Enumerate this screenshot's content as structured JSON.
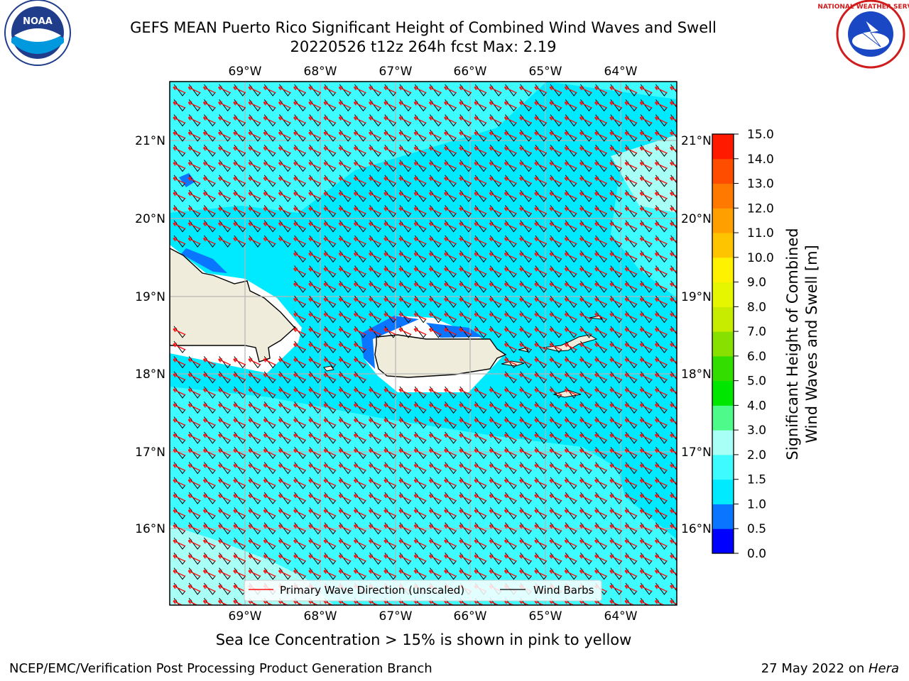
{
  "header": {
    "title_line1": "GEFS MEAN Puerto Rico Significant Height of Combined Wind Waves and Swell",
    "title_line2": "20220526 t12z 264h fcst   Max: 2.19"
  },
  "logos": {
    "left": {
      "text": "NOAA",
      "ring_text": "NATIONAL OCEANIC AND ATMOSPHERIC ADMINISTRATION · U.S. DEPARTMENT OF COMMERCE",
      "icon": "noaa-logo"
    },
    "right": {
      "ring_text": "NATIONAL WEATHER SERVICE",
      "icon": "nws-logo"
    }
  },
  "map": {
    "lon_labels": [
      "69°W",
      "68°W",
      "67°W",
      "66°W",
      "65°W",
      "64°W"
    ],
    "lat_labels": [
      "21°N",
      "20°N",
      "19°N",
      "18°N",
      "17°N",
      "16°N"
    ],
    "colors": {
      "ocean_dark": "#00eaff",
      "ocean_mid": "#3dfbff",
      "ocean_light": "#a8fff5",
      "land": "#efecdb",
      "coast_blue": "#0a76ff",
      "arrow": "#ff1010",
      "barb": "#000000",
      "grid": "#b5b5b5"
    }
  },
  "legend": {
    "entries": [
      {
        "label": "Primary Wave Direction (unscaled)",
        "color": "#ff1010"
      },
      {
        "label": "Wind Barbs",
        "color": "#000000"
      }
    ]
  },
  "colorbar": {
    "label_line1": "Significant Height of Combined",
    "label_line2": "Wind Waves and Swell [m]",
    "ticks": [
      "0.0",
      "0.5",
      "1.0",
      "1.5",
      "2.0",
      "3.0",
      "4.0",
      "5.0",
      "6.0",
      "7.0",
      "8.0",
      "9.0",
      "10.0",
      "11.0",
      "12.0",
      "13.0",
      "14.0",
      "15.0"
    ],
    "colors": [
      "#0000ff",
      "#0a76ff",
      "#00eaff",
      "#3dfbff",
      "#a8fff5",
      "#4dfa8a",
      "#00e600",
      "#33dd00",
      "#88e000",
      "#c8ec00",
      "#e6f500",
      "#fff200",
      "#ffc400",
      "#ff9f00",
      "#ff7800",
      "#ff4d00",
      "#ff1a00"
    ]
  },
  "notes": {
    "ice": "Sea Ice Concentration > 15% is shown in pink to yellow"
  },
  "footer": {
    "left": "NCEP/EMC/Verification Post Processing Product Generation Branch",
    "right_prefix": "27 May 2022 on ",
    "right_italic": "Hera"
  }
}
